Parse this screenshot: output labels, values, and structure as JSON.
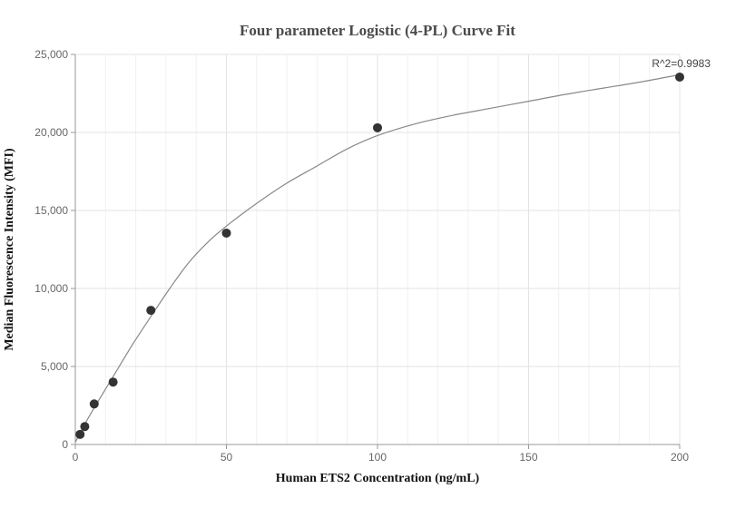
{
  "chart_data": {
    "type": "scatter",
    "title": "Four parameter Logistic (4-PL) Curve Fit",
    "xlabel": "Human ETS2 Concentration (ng/mL)",
    "ylabel": "Median Fluorescence Intensity (MFI)",
    "xlim": [
      0,
      200
    ],
    "ylim": [
      0,
      25000
    ],
    "x_ticks": [
      0,
      50,
      100,
      150,
      200
    ],
    "x_tick_labels": [
      "0",
      "50",
      "100",
      "150",
      "200"
    ],
    "y_ticks": [
      0,
      5000,
      10000,
      15000,
      20000,
      25000
    ],
    "y_tick_labels": [
      "0",
      "5,000",
      "10,000",
      "15,000",
      "20,000",
      "25,000"
    ],
    "grid": true,
    "series": [
      {
        "type": "scatter",
        "x": [
          1.5625,
          3.125,
          6.25,
          12.5,
          25,
          50,
          100,
          200
        ],
        "y": [
          650,
          1150,
          2600,
          4000,
          8600,
          13550,
          20300,
          23550
        ],
        "color": "#333333"
      },
      {
        "type": "line",
        "x": [
          0,
          3.125,
          6.25,
          12.5,
          18.75,
          25,
          31.25,
          37.5,
          43.75,
          50,
          60,
          70,
          80,
          90,
          100,
          112.5,
          125,
          137.5,
          150,
          162.5,
          175,
          187.5,
          200
        ],
        "y": [
          150,
          1300,
          2350,
          4350,
          6350,
          8200,
          10000,
          11650,
          12950,
          14000,
          15450,
          16750,
          17850,
          18950,
          19800,
          20550,
          21100,
          21550,
          22000,
          22450,
          22850,
          23250,
          23700
        ],
        "color": "#888888"
      }
    ],
    "annotations": [
      {
        "text": "R^2=0.9983",
        "x": 200,
        "y": 23550
      }
    ]
  }
}
